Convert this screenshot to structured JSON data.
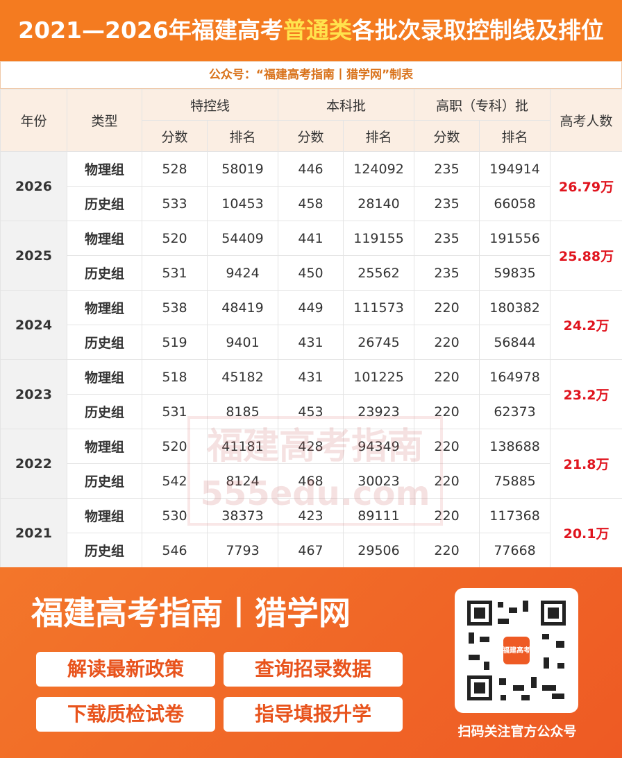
{
  "title": [
    "2021—2026年福建高考",
    "普通类",
    "各批次录取控制线及排位"
  ],
  "subtitle": "公众号：“福建高考指南丨猎学网”制表",
  "table": {
    "header": {
      "year": "年份",
      "type": "类型",
      "groups": [
        "特控线",
        "本科批",
        "高职（专科）批"
      ],
      "sub": [
        "分数",
        "排名"
      ],
      "total": "高考人数"
    },
    "rows": [
      {
        "year": "2026",
        "total": "26.79万",
        "groups": [
          {
            "type": "物理组",
            "values": [
              528,
              58019,
              446,
              124092,
              235,
              194914
            ]
          },
          {
            "type": "历史组",
            "values": [
              533,
              10453,
              458,
              28140,
              235,
              66058
            ]
          }
        ]
      },
      {
        "year": "2025",
        "total": "25.88万",
        "groups": [
          {
            "type": "物理组",
            "values": [
              520,
              54409,
              441,
              119155,
              235,
              191556
            ]
          },
          {
            "type": "历史组",
            "values": [
              531,
              9424,
              450,
              25562,
              235,
              59835
            ]
          }
        ]
      },
      {
        "year": "2024",
        "total": "24.2万",
        "groups": [
          {
            "type": "物理组",
            "values": [
              538,
              48419,
              449,
              111573,
              220,
              180382
            ]
          },
          {
            "type": "历史组",
            "values": [
              519,
              9401,
              431,
              26745,
              220,
              56844
            ]
          }
        ]
      },
      {
        "year": "2023",
        "total": "23.2万",
        "groups": [
          {
            "type": "物理组",
            "values": [
              518,
              45182,
              431,
              101225,
              220,
              164978
            ]
          },
          {
            "type": "历史组",
            "values": [
              531,
              8185,
              453,
              23923,
              220,
              62373
            ]
          }
        ]
      },
      {
        "year": "2022",
        "total": "21.8万",
        "groups": [
          {
            "type": "物理组",
            "values": [
              520,
              41181,
              428,
              94349,
              220,
              138688
            ]
          },
          {
            "type": "历史组",
            "values": [
              542,
              8124,
              468,
              30023,
              220,
              75885
            ]
          }
        ]
      },
      {
        "year": "2021",
        "total": "20.1万",
        "groups": [
          {
            "type": "物理组",
            "values": [
              530,
              38373,
              423,
              89111,
              220,
              117368
            ]
          },
          {
            "type": "历史组",
            "values": [
              546,
              7793,
              467,
              29506,
              220,
              77668
            ]
          }
        ]
      }
    ]
  },
  "watermark": [
    "福建高考指南",
    "555edu.com"
  ],
  "footer": {
    "brand": "福建高考指南丨猎学网",
    "buttons": [
      "解读最新政策",
      "查询招录数据",
      "下载质检试卷",
      "指导填报升学"
    ],
    "qr_logo": "福建高考",
    "qr_caption": "扫码关注官方公众号"
  }
}
